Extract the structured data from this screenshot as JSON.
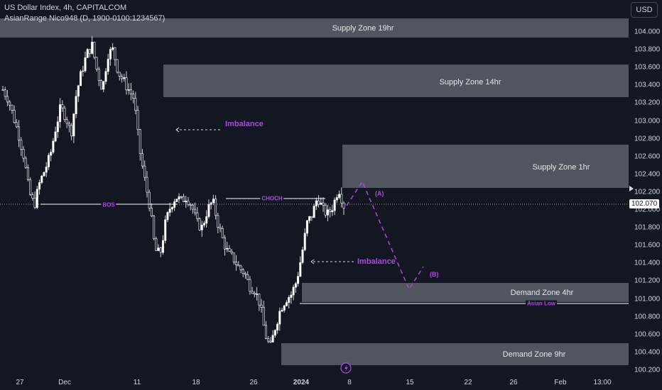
{
  "header": {
    "title": "US Dollar Index, 4h, CAPITALCOM",
    "indicator": "AsianRange Nico948 (D, 1900-0100:1234567)",
    "currency_label": "USD"
  },
  "price_axis": {
    "ticks": [
      "104.000",
      "103.800",
      "103.600",
      "103.400",
      "103.200",
      "103.000",
      "102.800",
      "102.600",
      "102.400",
      "102.200",
      "102.000",
      "101.800",
      "101.600",
      "101.400",
      "101.200",
      "101.000",
      "100.800",
      "100.600",
      "100.400",
      "100.200"
    ],
    "last_price": "102.070"
  },
  "time_axis": {
    "ticks": [
      {
        "label": "27",
        "bold": false
      },
      {
        "label": "Dec",
        "bold": false
      },
      {
        "label": "11",
        "bold": false
      },
      {
        "label": "18",
        "bold": false
      },
      {
        "label": "26",
        "bold": false
      },
      {
        "label": "2024",
        "bold": true
      },
      {
        "label": "8",
        "bold": false
      },
      {
        "label": "15",
        "bold": false
      },
      {
        "label": "22",
        "bold": false
      },
      {
        "label": "26",
        "bold": false
      },
      {
        "label": "Feb",
        "bold": false
      },
      {
        "label": "13:00",
        "bold": false
      }
    ]
  },
  "zones": {
    "supply_19hr": "Supply Zone 19hr",
    "supply_14hr": "Supply Zone 14hr",
    "supply_1hr": "Supply Zone 1hr",
    "demand_4hr": "Demand Zone 4hr",
    "demand_9hr": "Demand Zone 9hr"
  },
  "annotations": {
    "imbalance_upper": "Imbalance",
    "imbalance_lower": "Imbalance",
    "bos": "BOS",
    "choch": "CHOCH",
    "asian_low": "Asian Low",
    "wave_a": "(A)",
    "wave_b": "(B)"
  },
  "colors": {
    "background": "#131722",
    "zone_fill": "#5d606b",
    "annotation": "#b345e8",
    "candle": "#ffffff"
  },
  "icons": {
    "event": "lightning-icon"
  },
  "chart_data": {
    "type": "candlestick",
    "symbol": "US Dollar Index",
    "timeframe": "4h",
    "ylim": [
      100.2,
      104.1
    ],
    "last_price": 102.07,
    "close_path": [
      103.35,
      103.25,
      103.05,
      102.85,
      102.6,
      102.2,
      102.05,
      102.3,
      102.45,
      102.6,
      102.9,
      103.15,
      103.05,
      102.85,
      103.3,
      103.55,
      103.75,
      103.85,
      103.55,
      103.35,
      103.75,
      103.8,
      103.55,
      103.45,
      103.35,
      103.25,
      102.7,
      102.35,
      102.05,
      101.55,
      101.5,
      101.85,
      102.05,
      102.15,
      102.1,
      102.15,
      102.05,
      101.85,
      101.8,
      102.0,
      102.1,
      101.85,
      101.65,
      101.5,
      101.45,
      101.35,
      101.3,
      101.15,
      101.1,
      100.95,
      100.6,
      100.45,
      100.7,
      100.9,
      101.0,
      101.05,
      101.2,
      101.5,
      101.85,
      101.95,
      102.15,
      102.0,
      101.95,
      102.05,
      102.25,
      102.05
    ]
  }
}
